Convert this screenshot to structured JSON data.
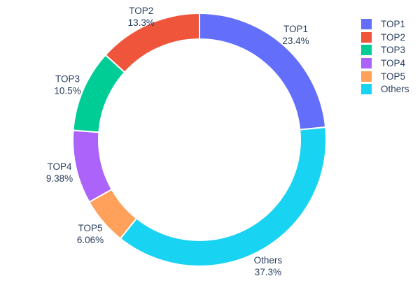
{
  "chart_data": {
    "type": "pie",
    "title": "",
    "labels": [
      "TOP1",
      "TOP2",
      "TOP3",
      "TOP4",
      "TOP5",
      "Others"
    ],
    "values": [
      23.4,
      13.3,
      10.5,
      9.38,
      6.06,
      37.3
    ],
    "percent_labels": [
      "23.4%",
      "13.3%",
      "10.5%",
      "9.38%",
      "6.06%",
      "37.3%"
    ],
    "colors": [
      "#636EFA",
      "#EF553B",
      "#00CC96",
      "#AB63FA",
      "#FFA15A",
      "#19D3F3"
    ],
    "hole": 0.8,
    "start_angle_deg": 0,
    "direction_first_slice": "clockwise-from-top",
    "clockwise_order_indices": [
      0,
      5,
      4,
      3,
      2,
      1
    ],
    "legend_position": "right",
    "slice_border_color": "#ffffff",
    "text_color": "#2a3f5f",
    "background": "#ffffff"
  },
  "legend": {
    "items": [
      {
        "label": "TOP1"
      },
      {
        "label": "TOP2"
      },
      {
        "label": "TOP3"
      },
      {
        "label": "TOP4"
      },
      {
        "label": "TOP5"
      },
      {
        "label": "Others"
      }
    ]
  }
}
